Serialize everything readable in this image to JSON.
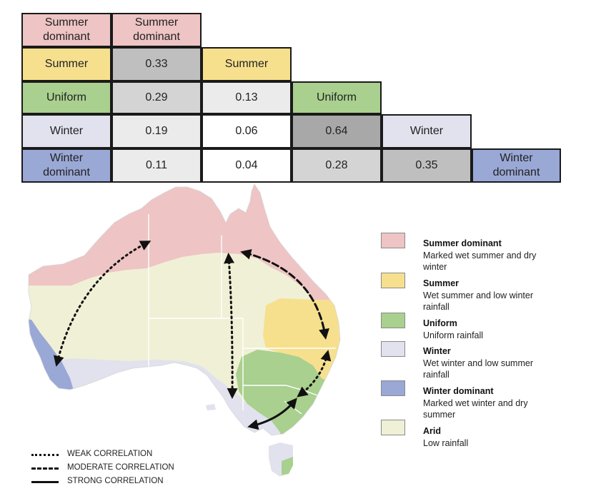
{
  "colors": {
    "summer_dominant": "#eec4c4",
    "summer": "#f6e08e",
    "uniform": "#a9d08e",
    "winter": "#e1e2ee",
    "winter_dominant": "#9aa8d6",
    "arid": "#f0f0d6",
    "cell_white": "#ffffff",
    "cell_light": "#ebebeb",
    "cell_mid": "#d4d4d4",
    "cell_dark": "#bfbfbf",
    "cell_darkest": "#a8a8a8"
  },
  "matrix": {
    "labels": {
      "summer_dominant": "Summer\ndominant",
      "summer": "Summer",
      "uniform": "Uniform",
      "winter": "Winter",
      "winter_dominant": "Winter\ndominant"
    },
    "values": {
      "summer_summer_dominant": "0.33",
      "uniform_summer_dominant": "0.29",
      "uniform_summer": "0.13",
      "winter_summer_dominant": "0.19",
      "winter_summer": "0.06",
      "winter_uniform": "0.64",
      "winter_dominant_summer_dominant": "0.11",
      "winter_dominant_summer": "0.04",
      "winter_dominant_uniform": "0.28",
      "winter_dominant_winter": "0.35"
    }
  },
  "legend": [
    {
      "key": "summer_dominant",
      "title": "Summer dominant",
      "desc": "Marked wet summer and dry winter"
    },
    {
      "key": "summer",
      "title": "Summer",
      "desc": "Wet summer and low winter rainfall"
    },
    {
      "key": "uniform",
      "title": "Uniform",
      "desc": "Uniform rainfall"
    },
    {
      "key": "winter",
      "title": "Winter",
      "desc": "Wet winter and low summer rainfall"
    },
    {
      "key": "winter_dominant",
      "title": "Winter dominant",
      "desc": "Marked wet winter and dry summer"
    },
    {
      "key": "arid",
      "title": "Arid",
      "desc": "Low rainfall"
    }
  ],
  "correlation_key": {
    "weak": "WEAK CORRELATION",
    "moderate": "MODERATE CORRELATION",
    "strong": "STRONG CORRELATION"
  }
}
